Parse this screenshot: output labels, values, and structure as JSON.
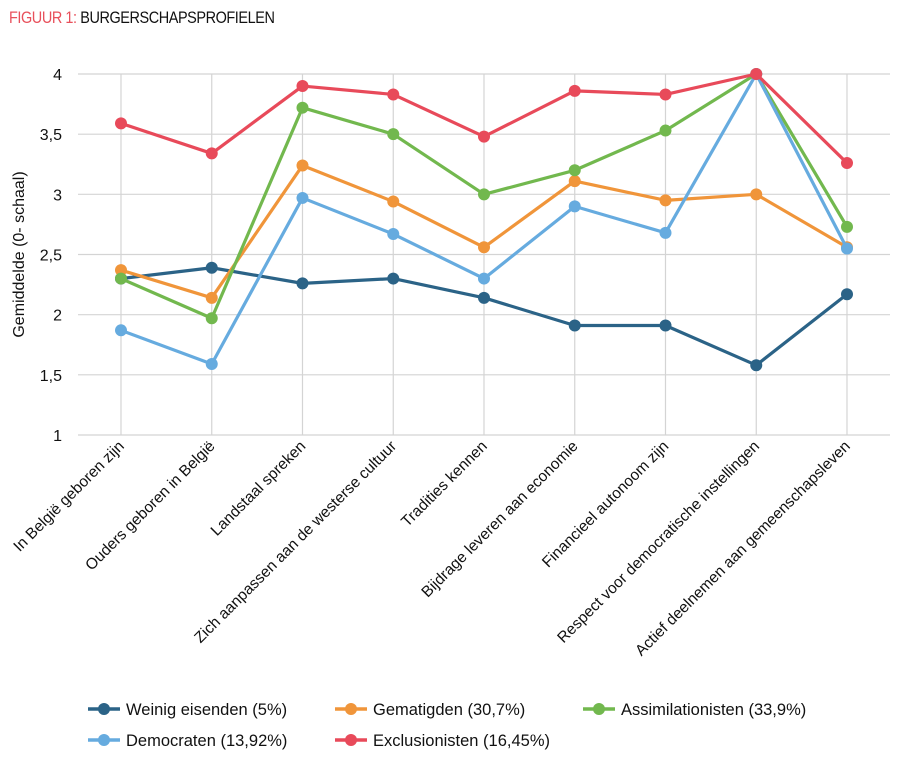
{
  "figure": {
    "prefix": "FIGUUR 1:",
    "title": "BURGERSCHAPSPROFIELEN"
  },
  "chart_data": {
    "type": "line",
    "ylabel": "Gemiddelde (0- schaal)",
    "xlabel": "",
    "ylim": [
      1,
      4
    ],
    "yticks": [
      "1",
      "1,5",
      "2",
      "2,5",
      "3",
      "3,5",
      "4"
    ],
    "ytick_values": [
      1,
      1.5,
      2,
      2.5,
      3,
      3.5,
      4
    ],
    "grid": "vertical and horizontal",
    "legend": "bottom",
    "categories": [
      "In België geboren zijn",
      "Ouders geboren in België",
      "Landstaal spreken",
      "Zich aanpassen aan de westerse cultuur",
      "Tradities kennen",
      "Bijdrage leveren aan economie",
      "Financieel autonoom zijn",
      "Respect voor democratische instellingen",
      "Actief deelnemen aan gemeenschapsleven"
    ],
    "series": [
      {
        "name": "Weinig eisenden (5%)",
        "color": "#2b6387",
        "values": [
          2.3,
          2.39,
          2.26,
          2.3,
          2.14,
          1.91,
          1.91,
          1.58,
          2.17
        ]
      },
      {
        "name": "Gematigden (30,7%)",
        "color": "#f0953a",
        "values": [
          2.37,
          2.14,
          3.24,
          2.94,
          2.56,
          3.11,
          2.95,
          3.0,
          2.56
        ]
      },
      {
        "name": "Assimilationisten (33,9%)",
        "color": "#72b84e",
        "values": [
          2.3,
          1.97,
          3.72,
          3.5,
          3.0,
          3.2,
          3.53,
          4.0,
          2.73
        ]
      },
      {
        "name": "Democraten (13,92%)",
        "color": "#66abdf",
        "values": [
          1.87,
          1.59,
          2.97,
          2.67,
          2.3,
          2.9,
          2.68,
          4.0,
          2.55
        ]
      },
      {
        "name": "Exclusionisten (16,45%)",
        "color": "#e84a5a",
        "values": [
          3.59,
          3.34,
          3.9,
          3.83,
          3.48,
          3.86,
          3.83,
          4.0,
          3.26
        ]
      }
    ]
  }
}
